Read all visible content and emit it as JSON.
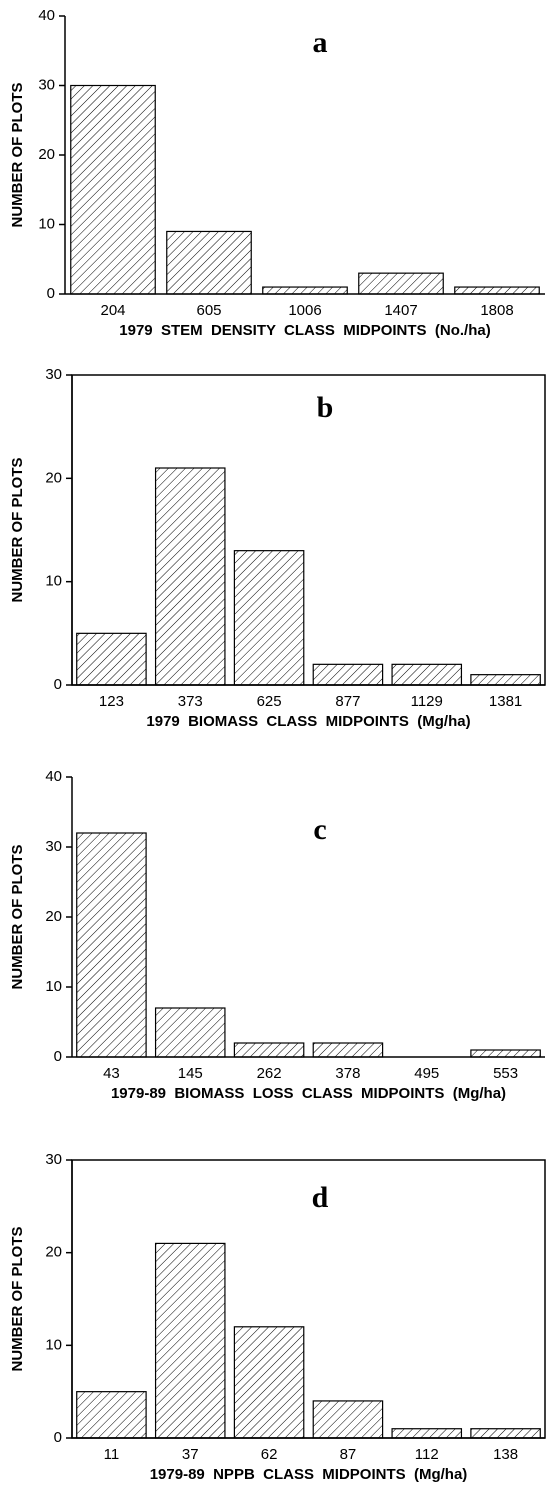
{
  "chart_data": [
    {
      "type": "bar",
      "title": "a",
      "categories": [
        "204",
        "605",
        "1006",
        "1407",
        "1808"
      ],
      "values": [
        30,
        9,
        1,
        3,
        1
      ],
      "ylim": [
        0,
        40
      ],
      "yticks": [
        0,
        10,
        20,
        30,
        40
      ],
      "y_label": "NUMBER OF PLOTS",
      "x_label": "1979  STEM  DENSITY  CLASS  MIDPOINTS  (No./ha)",
      "frame": false
    },
    {
      "type": "bar",
      "title": "b",
      "categories": [
        "123",
        "373",
        "625",
        "877",
        "1129",
        "1381"
      ],
      "values": [
        5,
        21,
        13,
        2,
        2,
        1
      ],
      "ylim": [
        0,
        30
      ],
      "yticks": [
        0,
        10,
        20,
        30
      ],
      "y_label": "NUMBER OF PLOTS",
      "x_label": "1979  BIOMASS  CLASS  MIDPOINTS  (Mg/ha)",
      "frame": true
    },
    {
      "type": "bar",
      "title": "c",
      "categories": [
        "43",
        "145",
        "262",
        "378",
        "495",
        "553"
      ],
      "values": [
        32,
        7,
        2,
        2,
        0,
        1
      ],
      "ylim": [
        0,
        40
      ],
      "yticks": [
        0,
        10,
        20,
        30,
        40
      ],
      "y_label": "NUMBER OF PLOTS",
      "x_label": "1979-89  BIOMASS  LOSS  CLASS  MIDPOINTS  (Mg/ha)",
      "frame": false
    },
    {
      "type": "bar",
      "title": "d",
      "categories": [
        "11",
        "37",
        "62",
        "87",
        "112",
        "138"
      ],
      "values": [
        5,
        21,
        12,
        4,
        1,
        1
      ],
      "ylim": [
        0,
        30
      ],
      "yticks": [
        0,
        10,
        20,
        30
      ],
      "y_label": "NUMBER OF PLOTS",
      "x_label": "1979-89  NPPB  CLASS  MIDPOINTS  (Mg/ha)",
      "frame": true
    }
  ]
}
